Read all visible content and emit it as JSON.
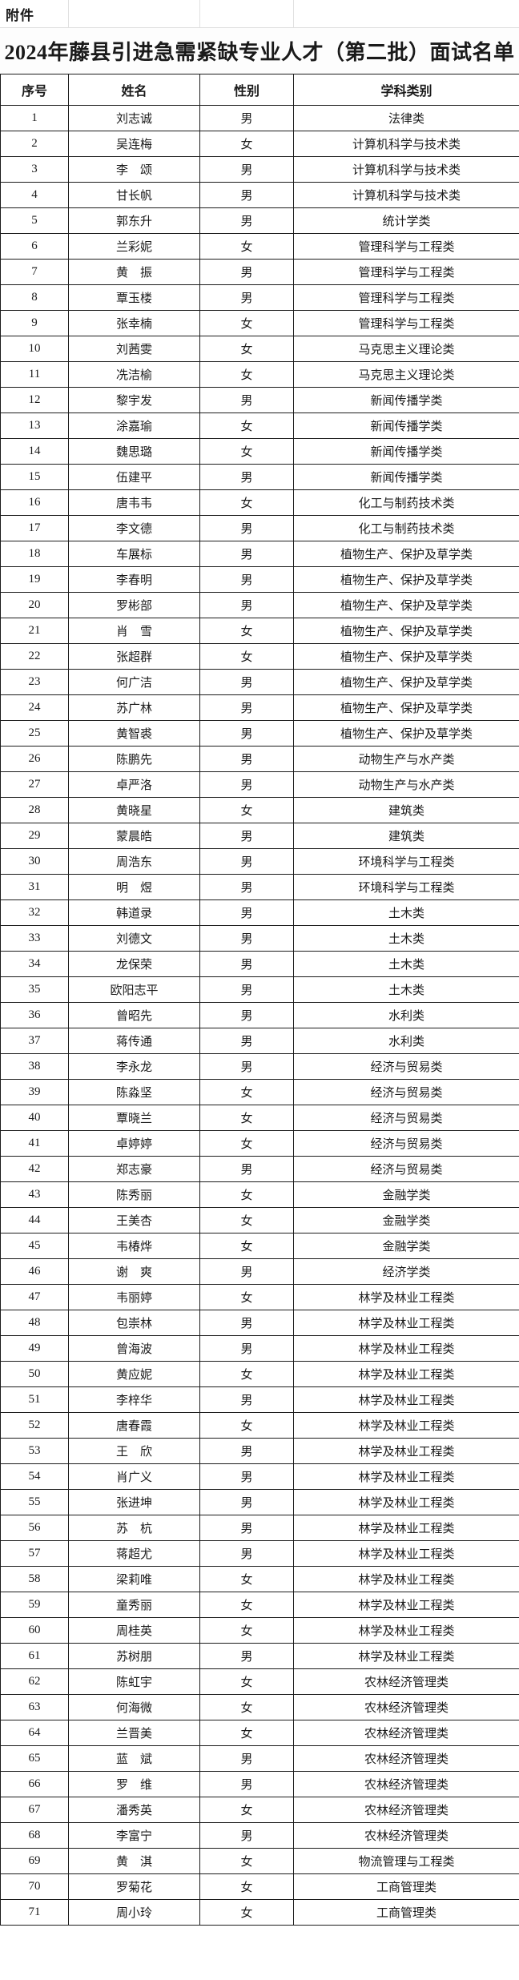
{
  "attachment_label": "附件",
  "title": "2024年藤县引进急需紧缺专业人才（第二批）面试名单",
  "table": {
    "headers": [
      "序号",
      "姓名",
      "性别",
      "学科类别"
    ],
    "rows": [
      [
        "1",
        "刘志诚",
        "男",
        "法律类"
      ],
      [
        "2",
        "吴连梅",
        "女",
        "计算机科学与技术类"
      ],
      [
        "3",
        "李　颂",
        "男",
        "计算机科学与技术类"
      ],
      [
        "4",
        "甘长帆",
        "男",
        "计算机科学与技术类"
      ],
      [
        "5",
        "郭东升",
        "男",
        "统计学类"
      ],
      [
        "6",
        "兰彩妮",
        "女",
        "管理科学与工程类"
      ],
      [
        "7",
        "黄　振",
        "男",
        "管理科学与工程类"
      ],
      [
        "8",
        "覃玉楼",
        "男",
        "管理科学与工程类"
      ],
      [
        "9",
        "张幸楠",
        "女",
        "管理科学与工程类"
      ],
      [
        "10",
        "刘茜雯",
        "女",
        "马克思主义理论类"
      ],
      [
        "11",
        "冼洁榆",
        "女",
        "马克思主义理论类"
      ],
      [
        "12",
        "黎宇发",
        "男",
        "新闻传播学类"
      ],
      [
        "13",
        "涂嘉瑜",
        "女",
        "新闻传播学类"
      ],
      [
        "14",
        "魏思璐",
        "女",
        "新闻传播学类"
      ],
      [
        "15",
        "伍建平",
        "男",
        "新闻传播学类"
      ],
      [
        "16",
        "唐韦韦",
        "女",
        "化工与制药技术类"
      ],
      [
        "17",
        "李文德",
        "男",
        "化工与制药技术类"
      ],
      [
        "18",
        "车展标",
        "男",
        "植物生产、保护及草学类"
      ],
      [
        "19",
        "李春明",
        "男",
        "植物生产、保护及草学类"
      ],
      [
        "20",
        "罗彬部",
        "男",
        "植物生产、保护及草学类"
      ],
      [
        "21",
        "肖　雪",
        "女",
        "植物生产、保护及草学类"
      ],
      [
        "22",
        "张超群",
        "女",
        "植物生产、保护及草学类"
      ],
      [
        "23",
        "何广洁",
        "男",
        "植物生产、保护及草学类"
      ],
      [
        "24",
        "苏广林",
        "男",
        "植物生产、保护及草学类"
      ],
      [
        "25",
        "黄智裘",
        "男",
        "植物生产、保护及草学类"
      ],
      [
        "26",
        "陈鹏先",
        "男",
        "动物生产与水产类"
      ],
      [
        "27",
        "卓严洛",
        "男",
        "动物生产与水产类"
      ],
      [
        "28",
        "黄晓星",
        "女",
        "建筑类"
      ],
      [
        "29",
        "蒙晨皓",
        "男",
        "建筑类"
      ],
      [
        "30",
        "周浩东",
        "男",
        "环境科学与工程类"
      ],
      [
        "31",
        "明　煜",
        "男",
        "环境科学与工程类"
      ],
      [
        "32",
        "韩道录",
        "男",
        "土木类"
      ],
      [
        "33",
        "刘德文",
        "男",
        "土木类"
      ],
      [
        "34",
        "龙保荣",
        "男",
        "土木类"
      ],
      [
        "35",
        "欧阳志平",
        "男",
        "土木类"
      ],
      [
        "36",
        "曾昭先",
        "男",
        "水利类"
      ],
      [
        "37",
        "蒋传通",
        "男",
        "水利类"
      ],
      [
        "38",
        "李永龙",
        "男",
        "经济与贸易类"
      ],
      [
        "39",
        "陈淼坚",
        "女",
        "经济与贸易类"
      ],
      [
        "40",
        "覃晓兰",
        "女",
        "经济与贸易类"
      ],
      [
        "41",
        "卓婷婷",
        "女",
        "经济与贸易类"
      ],
      [
        "42",
        "郑志豪",
        "男",
        "经济与贸易类"
      ],
      [
        "43",
        "陈秀丽",
        "女",
        "金融学类"
      ],
      [
        "44",
        "王美杏",
        "女",
        "金融学类"
      ],
      [
        "45",
        "韦椿烨",
        "女",
        "金融学类"
      ],
      [
        "46",
        "谢　爽",
        "男",
        "经济学类"
      ],
      [
        "47",
        "韦丽婷",
        "女",
        "林学及林业工程类"
      ],
      [
        "48",
        "包崇林",
        "男",
        "林学及林业工程类"
      ],
      [
        "49",
        "曾海波",
        "男",
        "林学及林业工程类"
      ],
      [
        "50",
        "黄应妮",
        "女",
        "林学及林业工程类"
      ],
      [
        "51",
        "李梓华",
        "男",
        "林学及林业工程类"
      ],
      [
        "52",
        "唐春霞",
        "女",
        "林学及林业工程类"
      ],
      [
        "53",
        "王　欣",
        "男",
        "林学及林业工程类"
      ],
      [
        "54",
        "肖广义",
        "男",
        "林学及林业工程类"
      ],
      [
        "55",
        "张进坤",
        "男",
        "林学及林业工程类"
      ],
      [
        "56",
        "苏　杭",
        "男",
        "林学及林业工程类"
      ],
      [
        "57",
        "蒋超尤",
        "男",
        "林学及林业工程类"
      ],
      [
        "58",
        "梁莉唯",
        "女",
        "林学及林业工程类"
      ],
      [
        "59",
        "童秀丽",
        "女",
        "林学及林业工程类"
      ],
      [
        "60",
        "周桂英",
        "女",
        "林学及林业工程类"
      ],
      [
        "61",
        "苏树朋",
        "男",
        "林学及林业工程类"
      ],
      [
        "62",
        "陈虹宇",
        "女",
        "农林经济管理类"
      ],
      [
        "63",
        "何海微",
        "女",
        "农林经济管理类"
      ],
      [
        "64",
        "兰晋美",
        "女",
        "农林经济管理类"
      ],
      [
        "65",
        "蓝　斌",
        "男",
        "农林经济管理类"
      ],
      [
        "66",
        "罗　维",
        "男",
        "农林经济管理类"
      ],
      [
        "67",
        "潘秀英",
        "女",
        "农林经济管理类"
      ],
      [
        "68",
        "李富宁",
        "男",
        "农林经济管理类"
      ],
      [
        "69",
        "黄　淇",
        "女",
        "物流管理与工程类"
      ],
      [
        "70",
        "罗菊花",
        "女",
        "工商管理类"
      ],
      [
        "71",
        "周小玲",
        "女",
        "工商管理类"
      ]
    ]
  }
}
